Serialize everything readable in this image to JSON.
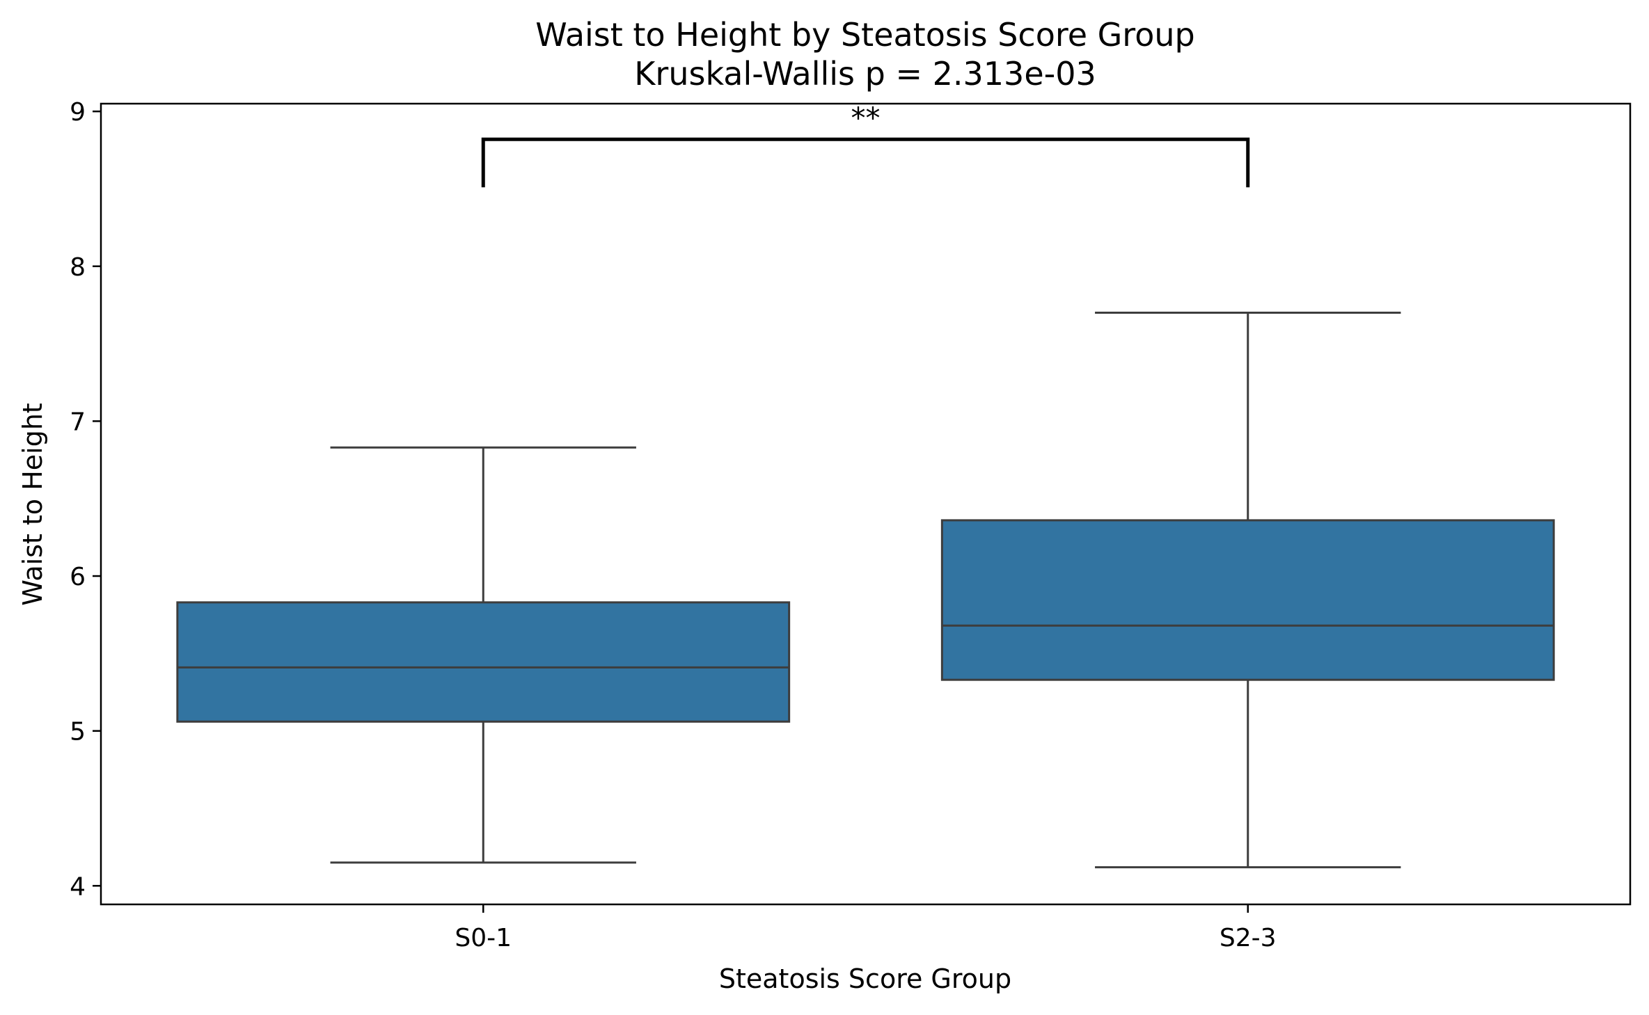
{
  "chart_data": {
    "type": "box",
    "title": "Waist to Height by Steatosis Score Group",
    "subtitle": "Kruskal-Wallis p = 2.313e-03",
    "xlabel": "Steatosis Score Group",
    "ylabel": "Waist to Height",
    "ylim": [
      3.88,
      9.05
    ],
    "yticks": [
      4,
      5,
      6,
      7,
      8,
      9
    ],
    "grid": false,
    "categories": [
      "S0-1",
      "S2-3"
    ],
    "boxes": [
      {
        "category": "S0-1",
        "whisker_low": 4.15,
        "q1": 5.06,
        "median": 5.41,
        "q3": 5.83,
        "whisker_high": 6.83
      },
      {
        "category": "S2-3",
        "whisker_low": 4.12,
        "q1": 5.33,
        "median": 5.68,
        "q3": 6.36,
        "whisker_high": 7.7
      }
    ],
    "box_color": "#3274a1",
    "edge_color": "#3d3d3d",
    "significance": {
      "from": "S0-1",
      "to": "S2-3",
      "label": "**",
      "y_bottom": 8.51,
      "y_top": 8.82
    }
  }
}
